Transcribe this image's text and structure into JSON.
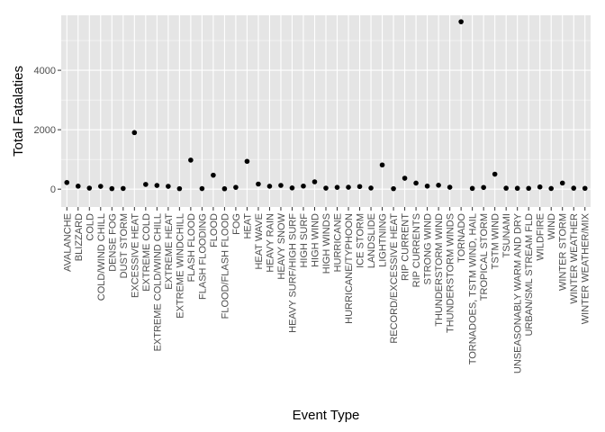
{
  "chart_data": {
    "type": "scatter",
    "xlabel": "Event Type",
    "ylabel": "Total Fatalaties",
    "ylim": [
      -600,
      5850
    ],
    "yticks": [
      0,
      2000,
      4000
    ],
    "grid": true,
    "background": "#e5e5e5",
    "gridline_color": "#ffffff",
    "point_color": "#000000",
    "categories": [
      "AVALANCHE",
      "BLIZZARD",
      "COLD",
      "COLD/WIND CHILL",
      "DENSE FOG",
      "DUST STORM",
      "EXCESSIVE HEAT",
      "EXTREME COLD",
      "EXTREME COLD/WIND CHILL",
      "EXTREME HEAT",
      "EXTREME WINDCHILL",
      "FLASH FLOOD",
      "FLASH FLOODING",
      "FLOOD",
      "FLOOD/FLASH FLOOD",
      "FOG",
      "HEAT",
      "HEAT WAVE",
      "HEAVY RAIN",
      "HEAVY SNOW",
      "HEAVY SURF/HIGH SURF",
      "HIGH SURF",
      "HIGH WIND",
      "HIGH WINDS",
      "HURRICANE",
      "HURRICANE/TYPHOON",
      "ICE STORM",
      "LANDSLIDE",
      "LIGHTNING",
      "RECORD/EXCESSIVE HEAT",
      "RIP CURRENT",
      "RIP CURRENTS",
      "STRONG WIND",
      "THUNDERSTORM WIND",
      "THUNDERSTORM WINDS",
      "TORNADO",
      "TORNADOES, TSTM WIND, HAIL",
      "TROPICAL STORM",
      "TSTM WIND",
      "TSUNAMI",
      "UNSEASONABLY WARM AND DRY",
      "URBAN/SML STREAM FLD",
      "WILDFIRE",
      "WIND",
      "WINTER STORM",
      "WINTER WEATHER",
      "WINTER WEATHER/MIX"
    ],
    "values": [
      224,
      101,
      35,
      95,
      18,
      24,
      1903,
      160,
      125,
      96,
      17,
      978,
      19,
      470,
      14,
      62,
      937,
      172,
      98,
      127,
      42,
      104,
      248,
      35,
      61,
      64,
      89,
      38,
      816,
      17,
      368,
      204,
      103,
      133,
      64,
      5633,
      25,
      58,
      504,
      33,
      29,
      28,
      75,
      23,
      206,
      33,
      28
    ]
  }
}
